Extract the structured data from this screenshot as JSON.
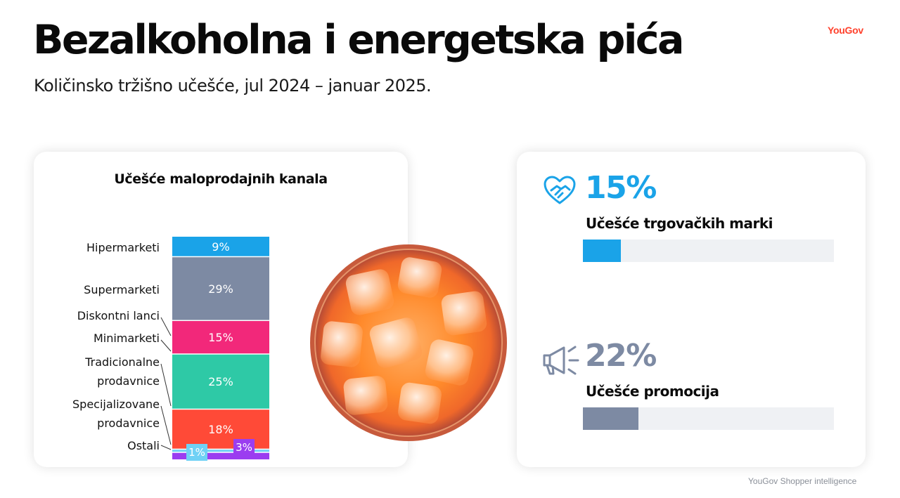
{
  "brand": "YouGov",
  "title": "Bezalkoholna i energetska pića",
  "subtitle": "Količinsko tržišno učešće, jul 2024 – januar 2025.",
  "footer": "YouGov Shopper intelligence",
  "chart_data": {
    "type": "bar",
    "stacked": true,
    "title": "Učešće maloprodajnih kanala",
    "categories": [
      "Hipermarketi",
      "Supermarketi",
      "Diskontni lanci",
      "Minimarketi",
      "Tradicionalne prodavnice",
      "Specijalizovane prodavnice",
      "Ostali"
    ],
    "series": [
      {
        "label": "Hipermarketi",
        "value": 9,
        "text": "9%",
        "color": "#1aa3e8"
      },
      {
        "label": "Supermarketi",
        "value": 29,
        "text": "29%",
        "color": "#7d8aa3"
      },
      {
        "label": "Diskontni lanci",
        "value": 15,
        "text": "15%",
        "color": "#f2287a"
      },
      {
        "label": "Minimarketi",
        "value": 25,
        "text": "25%",
        "color": "#2ec9a6"
      },
      {
        "label": "Tradicionalne prodavnice",
        "value": 18,
        "text": "18%",
        "color": "#ff4a37"
      },
      {
        "label": "Specijalizovane prodavnice",
        "value": 1,
        "text": "1%",
        "color": "#6fd1f5"
      },
      {
        "label": "Ostali",
        "value": 3,
        "text": "3%",
        "color": "#9b3df0"
      }
    ],
    "row_labels": [
      "Hipermarketi",
      "Supermarketi",
      "Diskontni lanci",
      "Minimarketi",
      "Tradicionalne",
      "prodavnice",
      "Specijalizovane",
      "prodavnice",
      "Ostali"
    ]
  },
  "stats": [
    {
      "value": "15%",
      "number": 15,
      "label": "Učešće trgovačkih marki",
      "color": "#1aa3e8",
      "icon": "heart-handshake-icon"
    },
    {
      "value": "22%",
      "number": 22,
      "label": "Učešće promocija",
      "color": "#7d8aa3",
      "icon": "megaphone-icon"
    }
  ]
}
